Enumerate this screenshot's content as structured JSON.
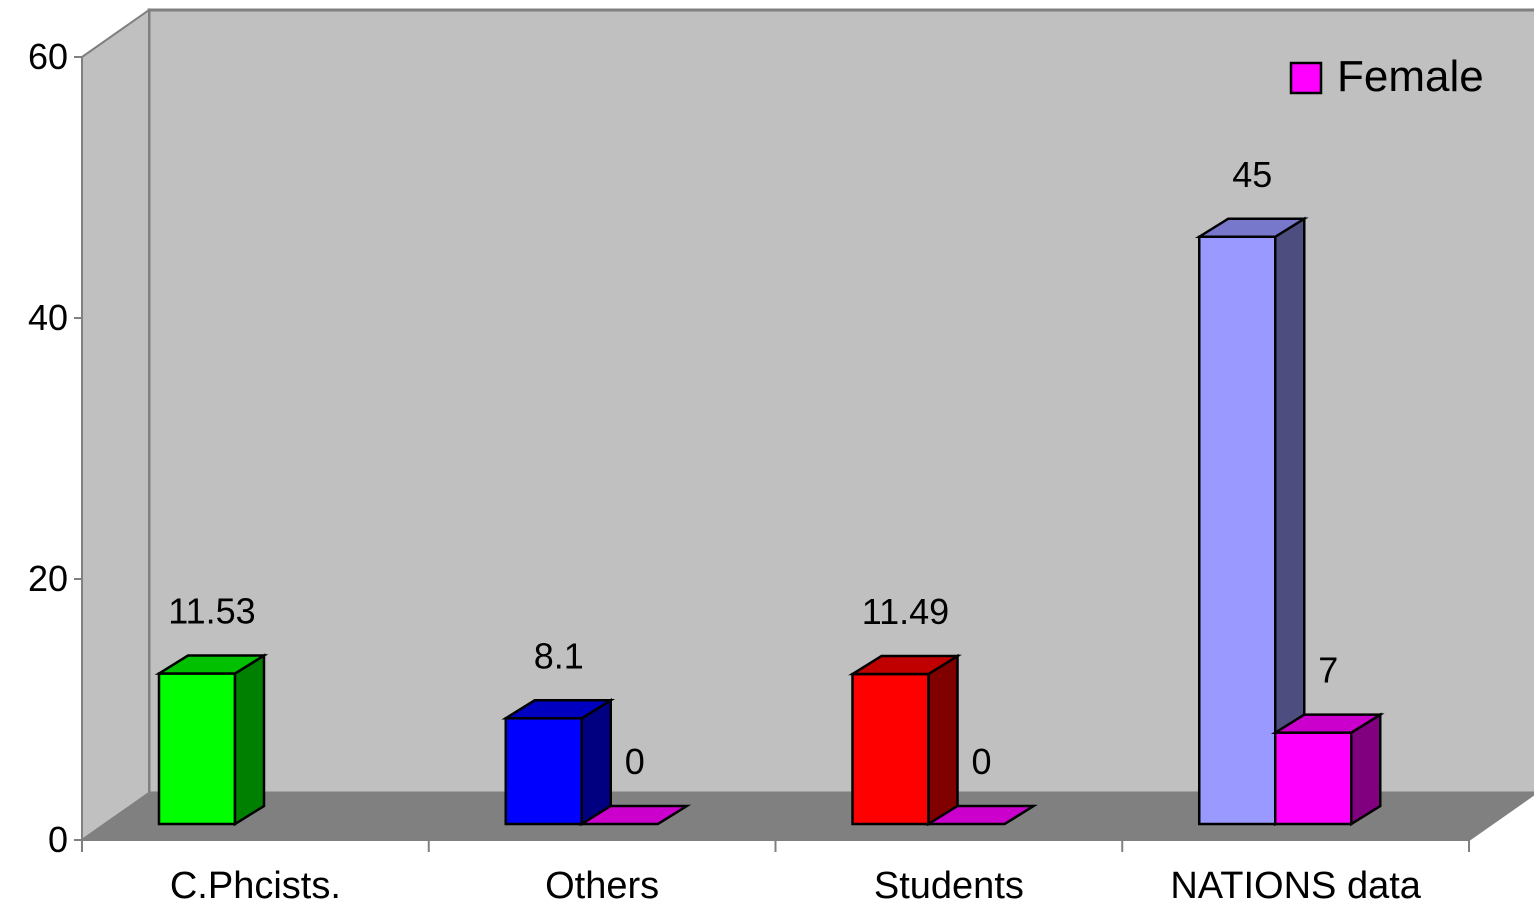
{
  "chart_data": {
    "type": "bar",
    "style": "3d-clustered",
    "categories": [
      "C.Phcists.",
      "Others",
      "Students",
      "NATIONS data"
    ],
    "series": [
      {
        "values": [
          11.53,
          8.1,
          11.49,
          45
        ],
        "data_labels": [
          "11.53",
          "8.1",
          "11.49",
          "45"
        ],
        "point_colors": [
          "#00ff00",
          "#0000ff",
          "#ff0000",
          "#9999ff"
        ],
        "point_side_colors": [
          "#008000",
          "#000080",
          "#800000",
          "#4d4d80"
        ],
        "point_top_colors": [
          "#00c000",
          "#0000c0",
          "#c00000",
          "#7777cc"
        ]
      },
      {
        "name": "Female",
        "values": [
          null,
          0,
          0,
          7
        ],
        "data_labels": [
          "",
          "0",
          "0",
          "7"
        ],
        "color": "#ff00ff",
        "side_color": "#800080",
        "top_color": "#cc00cc"
      }
    ],
    "ylim": [
      0,
      60
    ],
    "yticks": [
      "0",
      "20",
      "40",
      "60"
    ],
    "grid": false,
    "legend": {
      "position": "top-right",
      "entries": [
        "Female"
      ]
    },
    "colors": {
      "back_wall": "#c0c0c0",
      "floor": "#808080",
      "axis": "#808080"
    }
  }
}
